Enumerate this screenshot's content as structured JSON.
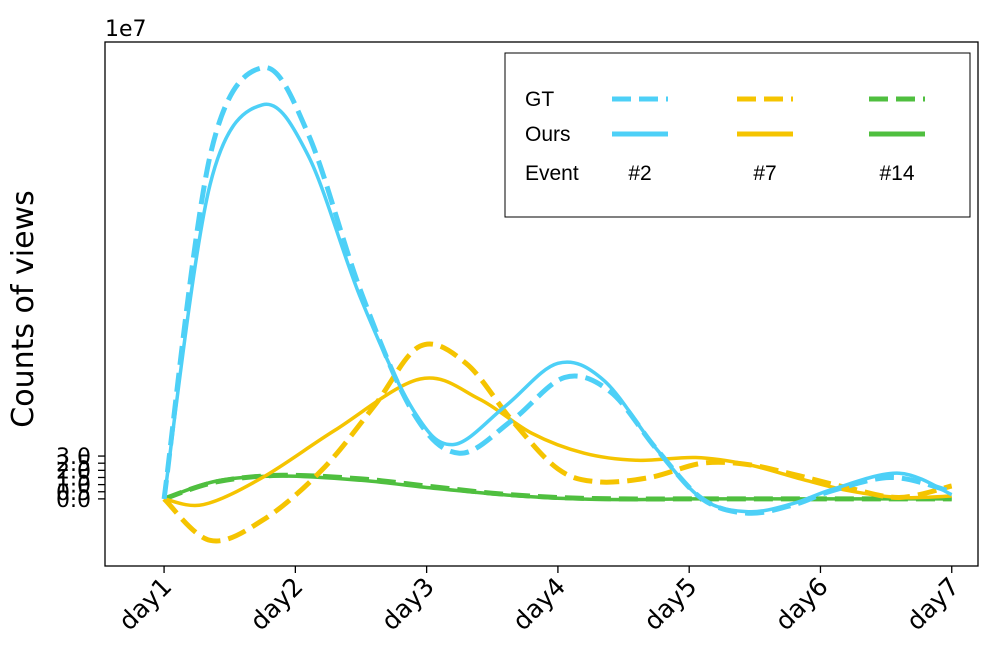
{
  "chart_data": {
    "type": "line",
    "x": [
      "day1",
      "day2",
      "day3",
      "day4",
      "day5",
      "day6",
      "day7"
    ],
    "x_pos": [
      1,
      2,
      3,
      4,
      5,
      6,
      7
    ],
    "xlim": [
      0.55,
      7.2
    ],
    "ylim": [
      -4.7,
      32.0
    ],
    "ylabel": "Counts of views",
    "y_offset_label": "1e7",
    "y_ticks": [
      0.0,
      0.5,
      1.0,
      1.5,
      2.0,
      2.5,
      3.0
    ],
    "y_tick_labels": [
      "0.0",
      "0.5",
      "1.0",
      "1.5",
      "2.0",
      "2.5",
      "3.0"
    ],
    "grid": false,
    "legend": {
      "position": "top-right",
      "row_labels": [
        "GT",
        "Ours",
        "Event"
      ],
      "column_labels": [
        "#2",
        "#7",
        "#14"
      ],
      "colors": [
        "#4dd0f7",
        "#f5c400",
        "#4fbf3f"
      ]
    },
    "series": [
      {
        "event": "#2",
        "method": "GT",
        "style": "dashed",
        "color": "#4dd0f7",
        "points": [
          [
            1,
            0
          ],
          [
            1.35,
            24
          ],
          [
            1.75,
            30.2
          ],
          [
            2.1,
            25.5
          ],
          [
            2.5,
            14.5
          ],
          [
            2.9,
            6
          ],
          [
            3.25,
            3.2
          ],
          [
            3.65,
            5.5
          ],
          [
            4.05,
            8.5
          ],
          [
            4.4,
            7.5
          ],
          [
            4.75,
            3.5
          ],
          [
            5.1,
            0
          ],
          [
            5.45,
            -1
          ],
          [
            5.8,
            -0.4
          ],
          [
            6.1,
            0.6
          ],
          [
            6.55,
            1.5
          ],
          [
            7,
            0.5
          ]
        ]
      },
      {
        "event": "#2",
        "method": "Ours",
        "style": "solid",
        "color": "#4dd0f7",
        "points": [
          [
            1,
            0
          ],
          [
            1.35,
            22
          ],
          [
            1.75,
            27.6
          ],
          [
            2.1,
            24
          ],
          [
            2.5,
            14
          ],
          [
            2.9,
            6.2
          ],
          [
            3.2,
            3.8
          ],
          [
            3.6,
            6.5
          ],
          [
            4.0,
            9.5
          ],
          [
            4.35,
            8.3
          ],
          [
            4.75,
            3.5
          ],
          [
            5.1,
            0
          ],
          [
            5.45,
            -0.9
          ],
          [
            5.8,
            -0.3
          ],
          [
            6.1,
            0.7
          ],
          [
            6.6,
            1.8
          ],
          [
            7,
            0.3
          ]
        ]
      },
      {
        "event": "#7",
        "method": "GT",
        "style": "dashed",
        "color": "#f5c400",
        "points": [
          [
            1,
            0
          ],
          [
            1.35,
            -2.9
          ],
          [
            1.75,
            -1.5
          ],
          [
            2.2,
            2
          ],
          [
            2.6,
            6.5
          ],
          [
            2.95,
            10.7
          ],
          [
            3.3,
            9.5
          ],
          [
            3.65,
            5.5
          ],
          [
            4.0,
            2.1
          ],
          [
            4.3,
            1.2
          ],
          [
            4.7,
            1.5
          ],
          [
            5.1,
            2.5
          ],
          [
            5.45,
            2.4
          ],
          [
            5.8,
            1.7
          ],
          [
            6.2,
            0.8
          ],
          [
            6.6,
            0.1
          ],
          [
            7,
            0.9
          ]
        ]
      },
      {
        "event": "#7",
        "method": "Ours",
        "style": "solid",
        "color": "#f5c400",
        "points": [
          [
            1,
            0
          ],
          [
            1.3,
            -0.4
          ],
          [
            1.75,
            1.5
          ],
          [
            2.3,
            4.8
          ],
          [
            2.95,
            8.4
          ],
          [
            3.4,
            7
          ],
          [
            3.8,
            4.6
          ],
          [
            4.2,
            3.2
          ],
          [
            4.6,
            2.7
          ],
          [
            5.05,
            2.9
          ],
          [
            5.45,
            2.4
          ],
          [
            5.85,
            1.4
          ],
          [
            6.2,
            0.6
          ],
          [
            6.6,
            0.1
          ],
          [
            7,
            0.2
          ]
        ]
      },
      {
        "event": "#14",
        "method": "GT",
        "style": "dashed",
        "color": "#4fbf3f",
        "points": [
          [
            1,
            0
          ],
          [
            1.4,
            1.2
          ],
          [
            1.9,
            1.65
          ],
          [
            2.5,
            1.4
          ],
          [
            3.0,
            0.9
          ],
          [
            3.5,
            0.4
          ],
          [
            4.0,
            0.1
          ],
          [
            4.5,
            0
          ],
          [
            5.0,
            0
          ],
          [
            5.5,
            0
          ],
          [
            6.0,
            0
          ],
          [
            6.5,
            0
          ],
          [
            7,
            0
          ]
        ]
      },
      {
        "event": "#14",
        "method": "Ours",
        "style": "solid",
        "color": "#4fbf3f",
        "points": [
          [
            1,
            0
          ],
          [
            1.4,
            1.25
          ],
          [
            1.9,
            1.6
          ],
          [
            2.5,
            1.3
          ],
          [
            3.0,
            0.8
          ],
          [
            3.5,
            0.35
          ],
          [
            4.0,
            0.05
          ],
          [
            4.5,
            -0.05
          ],
          [
            5.0,
            0
          ],
          [
            5.5,
            0
          ],
          [
            6.0,
            0
          ],
          [
            6.5,
            0
          ],
          [
            7,
            0
          ]
        ]
      }
    ]
  }
}
